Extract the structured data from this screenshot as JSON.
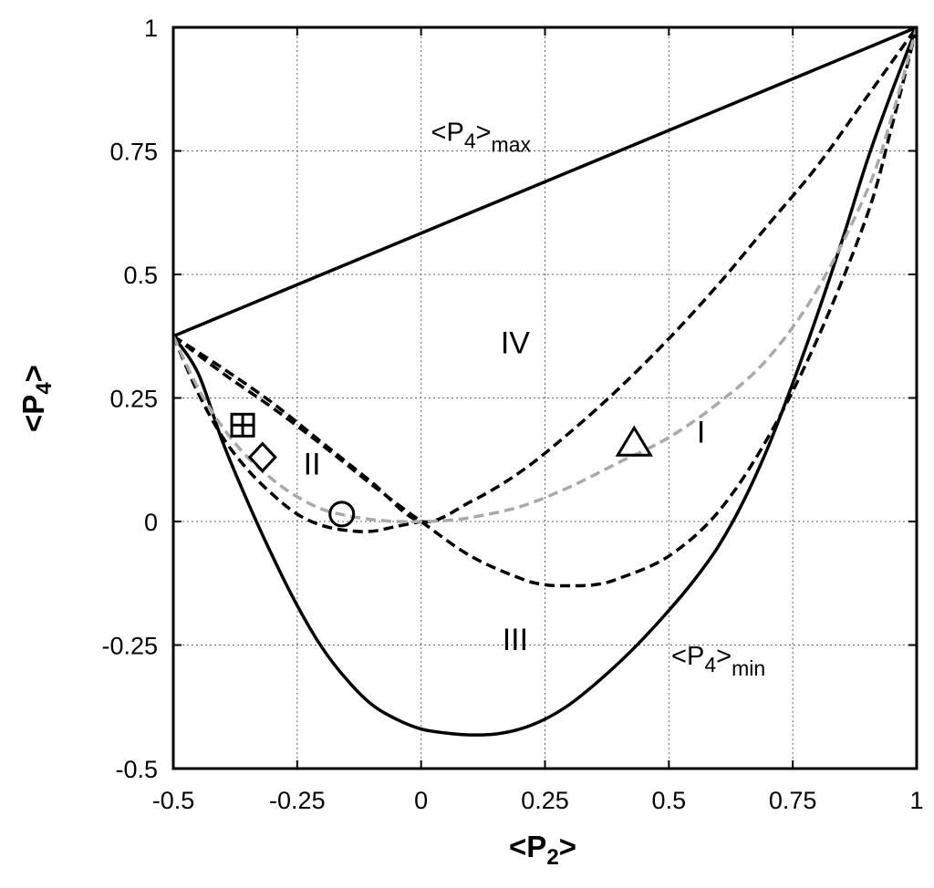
{
  "chart_data": {
    "type": "line",
    "title": "",
    "xlabel_base": "<P",
    "xlabel_sub": "2",
    "xlabel_end": ">",
    "ylabel_base": "<P",
    "ylabel_sub": "4",
    "ylabel_end": ">",
    "xlim": [
      -0.5,
      1
    ],
    "ylim": [
      -0.5,
      1
    ],
    "grid": true,
    "xticks": [
      -0.5,
      -0.25,
      0,
      0.25,
      0.5,
      0.75,
      1
    ],
    "xtick_labels": [
      "-0.5",
      "-0.25",
      "0",
      "0.25",
      "0.5",
      "0.75",
      "1"
    ],
    "yticks": [
      -0.5,
      -0.25,
      0,
      0.25,
      0.5,
      0.75,
      1
    ],
    "ytick_labels": [
      "-0.5",
      "-0.25",
      "0",
      "0.25",
      "0.5",
      "0.75",
      "1"
    ],
    "series": [
      {
        "style": "solid",
        "color": "#000000",
        "x": [
          -0.5,
          1
        ],
        "y": [
          0.375,
          1
        ]
      },
      {
        "style": "solid",
        "color": "#000000",
        "x": [
          -0.5,
          -0.45,
          -0.4,
          -0.35,
          -0.3,
          -0.25,
          -0.2,
          -0.15,
          -0.1,
          -0.05,
          0,
          0.05,
          0.1,
          0.15,
          0.2,
          0.25,
          0.3,
          0.35,
          0.4,
          0.45,
          0.5,
          0.55,
          0.6,
          0.65,
          0.7,
          0.75,
          0.8,
          0.85,
          0.9,
          0.95,
          1
        ],
        "y": [
          0.375,
          0.3,
          0.16,
          0.04,
          -0.07,
          -0.17,
          -0.255,
          -0.32,
          -0.37,
          -0.4,
          -0.42,
          -0.428,
          -0.432,
          -0.43,
          -0.42,
          -0.4,
          -0.37,
          -0.33,
          -0.285,
          -0.235,
          -0.18,
          -0.12,
          -0.05,
          0.04,
          0.15,
          0.28,
          0.42,
          0.57,
          0.73,
          0.87,
          1
        ]
      },
      {
        "style": "dashed",
        "color": "#000000",
        "x": [
          -0.5,
          -0.4,
          -0.3,
          -0.2,
          -0.1,
          0,
          0.1,
          0.2,
          0.3,
          0.4,
          0.5,
          0.6,
          0.7,
          0.8,
          0.9,
          1
        ],
        "y": [
          0.375,
          0.31,
          0.24,
          0.16,
          0.08,
          0,
          0.04,
          0.1,
          0.18,
          0.27,
          0.37,
          0.48,
          0.6,
          0.72,
          0.86,
          1
        ]
      },
      {
        "style": "dashed",
        "color": "#000000",
        "x": [
          -0.5,
          -0.45,
          -0.4,
          -0.35,
          -0.3,
          -0.25,
          -0.2,
          -0.15,
          -0.1,
          -0.05,
          0
        ],
        "y": [
          0.375,
          0.26,
          0.17,
          0.105,
          0.055,
          0.015,
          -0.008,
          -0.018,
          -0.02,
          -0.01,
          0
        ]
      },
      {
        "style": "dashed",
        "color": "#000000",
        "x": [
          -0.5,
          -0.4,
          -0.3,
          -0.2,
          -0.1,
          0,
          0.1,
          0.2,
          0.25,
          0.3,
          0.35,
          0.4,
          0.5,
          0.6,
          0.7,
          0.8,
          0.9,
          0.95,
          1
        ],
        "y": [
          0.375,
          0.3,
          0.23,
          0.155,
          0.075,
          0,
          -0.07,
          -0.115,
          -0.128,
          -0.13,
          -0.128,
          -0.115,
          -0.07,
          0.02,
          0.17,
          0.37,
          0.62,
          0.8,
          1
        ]
      },
      {
        "style": "dashed",
        "color": "#aaaaaa",
        "x": [
          -0.5,
          -0.45,
          -0.4,
          -0.35,
          -0.3,
          -0.25,
          -0.2,
          -0.15,
          -0.1,
          -0.05,
          0,
          0.05,
          0.1,
          0.2,
          0.3,
          0.4,
          0.5,
          0.6,
          0.7,
          0.8,
          0.9,
          0.95,
          1
        ],
        "y": [
          0.375,
          0.27,
          0.19,
          0.13,
          0.085,
          0.05,
          0.025,
          0.012,
          0.004,
          0.0,
          0.0,
          0.002,
          0.008,
          0.03,
          0.07,
          0.12,
          0.17,
          0.24,
          0.33,
          0.47,
          0.67,
          0.82,
          1
        ]
      }
    ],
    "markers": [
      {
        "shape": "square-plus",
        "x": -0.36,
        "y": 0.195
      },
      {
        "shape": "diamond",
        "x": -0.32,
        "y": 0.13
      },
      {
        "shape": "circle",
        "x": -0.16,
        "y": 0.015
      },
      {
        "shape": "triangle",
        "x": 0.43,
        "y": 0.16
      }
    ],
    "region_labels": [
      {
        "text": "IV",
        "x": 0.19,
        "y": 0.34
      },
      {
        "text": "II",
        "x": -0.22,
        "y": 0.095
      },
      {
        "text": "I",
        "x": 0.565,
        "y": 0.16
      },
      {
        "text": "III",
        "x": 0.19,
        "y": -0.26
      }
    ],
    "curve_labels": [
      {
        "base": "<P",
        "sub": "4",
        "end": ">",
        "sub2": "max",
        "x": 0.02,
        "y": 0.77
      },
      {
        "base": "<P",
        "sub": "4",
        "end": ">",
        "sub2": "min",
        "x": 0.505,
        "y": -0.29
      }
    ]
  }
}
